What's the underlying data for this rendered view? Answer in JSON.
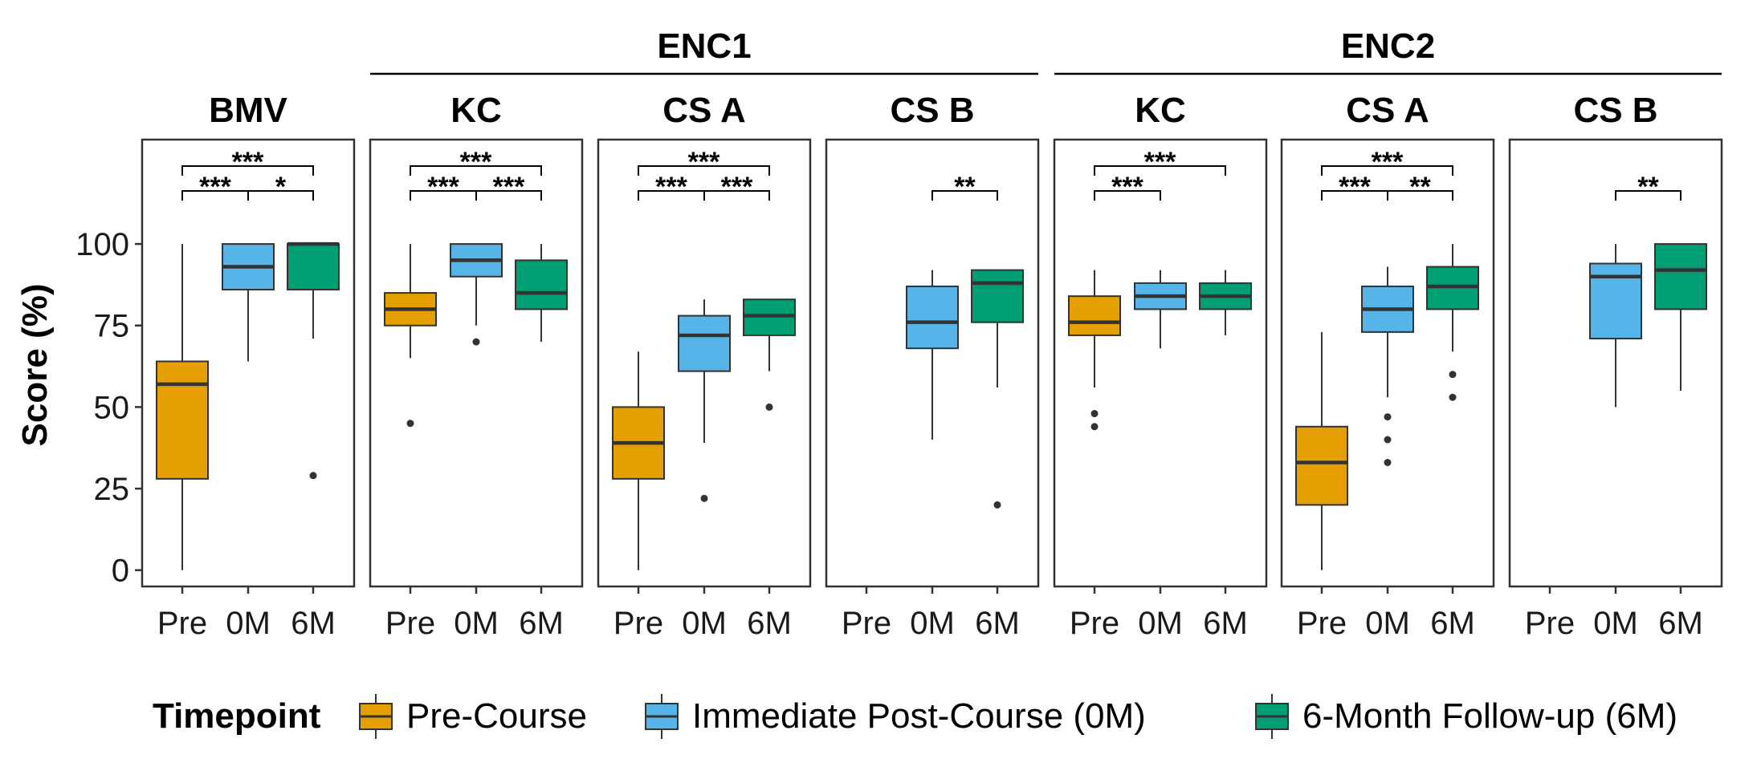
{
  "chart_data": {
    "type": "box",
    "ylabel": "Score (%)",
    "ylim": [
      -5,
      132
    ],
    "yticks": [
      0,
      25,
      50,
      75,
      100
    ],
    "x_categories": [
      "Pre",
      "0M",
      "6M"
    ],
    "groups": [
      {
        "label": "",
        "panels": [
          0
        ]
      },
      {
        "label": "ENC1",
        "panels": [
          1,
          2,
          3
        ]
      },
      {
        "label": "ENC2",
        "panels": [
          4,
          5,
          6
        ]
      }
    ],
    "legend": {
      "title": "Timepoint",
      "position": "bottom",
      "entries": [
        {
          "key": "Pre",
          "label": "Pre-Course",
          "color": "#E69F00"
        },
        {
          "key": "0M",
          "label": "Immediate Post-Course (0M)",
          "color": "#56B4E9"
        },
        {
          "key": "6M",
          "label": "6-Month Follow-up (6M)",
          "color": "#009E73"
        }
      ]
    },
    "panels": [
      {
        "title": "BMV",
        "boxes": [
          {
            "x": "Pre",
            "q1": 28,
            "median": 57,
            "q3": 64,
            "whisker_low": 0,
            "whisker_high": 100,
            "outliers": []
          },
          {
            "x": "0M",
            "q1": 86,
            "median": 93,
            "q3": 100,
            "whisker_low": 64,
            "whisker_high": 100,
            "outliers": []
          },
          {
            "x": "6M",
            "q1": 86,
            "median": 100,
            "q3": 100,
            "whisker_low": 71,
            "whisker_high": 100,
            "outliers": [
              29
            ]
          }
        ],
        "comparisons": [
          {
            "from": "Pre",
            "to": "6M",
            "label": "***",
            "level": 2
          },
          {
            "from": "Pre",
            "to": "0M",
            "label": "***",
            "level": 1
          },
          {
            "from": "0M",
            "to": "6M",
            "label": "*",
            "level": 1
          }
        ]
      },
      {
        "title": "KC",
        "boxes": [
          {
            "x": "Pre",
            "q1": 75,
            "median": 80,
            "q3": 85,
            "whisker_low": 65,
            "whisker_high": 100,
            "outliers": [
              45
            ]
          },
          {
            "x": "0M",
            "q1": 90,
            "median": 95,
            "q3": 100,
            "whisker_low": 75,
            "whisker_high": 100,
            "outliers": [
              70
            ]
          },
          {
            "x": "6M",
            "q1": 80,
            "median": 85,
            "q3": 95,
            "whisker_low": 70,
            "whisker_high": 100,
            "outliers": []
          }
        ],
        "comparisons": [
          {
            "from": "Pre",
            "to": "6M",
            "label": "***",
            "level": 2
          },
          {
            "from": "Pre",
            "to": "0M",
            "label": "***",
            "level": 1
          },
          {
            "from": "0M",
            "to": "6M",
            "label": "***",
            "level": 1
          }
        ]
      },
      {
        "title": "CS A",
        "boxes": [
          {
            "x": "Pre",
            "q1": 28,
            "median": 39,
            "q3": 50,
            "whisker_low": 0,
            "whisker_high": 67,
            "outliers": []
          },
          {
            "x": "0M",
            "q1": 61,
            "median": 72,
            "q3": 78,
            "whisker_low": 39,
            "whisker_high": 83,
            "outliers": [
              22
            ]
          },
          {
            "x": "6M",
            "q1": 72,
            "median": 78,
            "q3": 83,
            "whisker_low": 61,
            "whisker_high": 83,
            "outliers": [
              50
            ]
          }
        ],
        "comparisons": [
          {
            "from": "Pre",
            "to": "6M",
            "label": "***",
            "level": 2
          },
          {
            "from": "Pre",
            "to": "0M",
            "label": "***",
            "level": 1
          },
          {
            "from": "0M",
            "to": "6M",
            "label": "***",
            "level": 1
          }
        ]
      },
      {
        "title": "CS B",
        "boxes": [
          {
            "x": "0M",
            "q1": 68,
            "median": 76,
            "q3": 87,
            "whisker_low": 40,
            "whisker_high": 92,
            "outliers": []
          },
          {
            "x": "6M",
            "q1": 76,
            "median": 88,
            "q3": 92,
            "whisker_low": 56,
            "whisker_high": 92,
            "outliers": [
              20
            ]
          }
        ],
        "comparisons": [
          {
            "from": "0M",
            "to": "6M",
            "label": "**",
            "level": 1
          }
        ]
      },
      {
        "title": "KC",
        "boxes": [
          {
            "x": "Pre",
            "q1": 72,
            "median": 76,
            "q3": 84,
            "whisker_low": 56,
            "whisker_high": 92,
            "outliers": [
              48,
              44
            ]
          },
          {
            "x": "0M",
            "q1": 80,
            "median": 84,
            "q3": 88,
            "whisker_low": 68,
            "whisker_high": 92,
            "outliers": []
          },
          {
            "x": "6M",
            "q1": 80,
            "median": 84,
            "q3": 88,
            "whisker_low": 72,
            "whisker_high": 92,
            "outliers": []
          }
        ],
        "comparisons": [
          {
            "from": "Pre",
            "to": "6M",
            "label": "***",
            "level": 2
          },
          {
            "from": "Pre",
            "to": "0M",
            "label": "***",
            "level": 1
          }
        ]
      },
      {
        "title": "CS A",
        "boxes": [
          {
            "x": "Pre",
            "q1": 20,
            "median": 33,
            "q3": 44,
            "whisker_low": 0,
            "whisker_high": 73,
            "outliers": []
          },
          {
            "x": "0M",
            "q1": 73,
            "median": 80,
            "q3": 87,
            "whisker_low": 53,
            "whisker_high": 93,
            "outliers": [
              47,
              40,
              33
            ]
          },
          {
            "x": "6M",
            "q1": 80,
            "median": 87,
            "q3": 93,
            "whisker_low": 67,
            "whisker_high": 100,
            "outliers": [
              60,
              53
            ]
          }
        ],
        "comparisons": [
          {
            "from": "Pre",
            "to": "6M",
            "label": "***",
            "level": 2
          },
          {
            "from": "Pre",
            "to": "0M",
            "label": "***",
            "level": 1
          },
          {
            "from": "0M",
            "to": "6M",
            "label": "**",
            "level": 1
          }
        ]
      },
      {
        "title": "CS B",
        "boxes": [
          {
            "x": "0M",
            "q1": 71,
            "median": 90,
            "q3": 94,
            "whisker_low": 50,
            "whisker_high": 100,
            "outliers": []
          },
          {
            "x": "6M",
            "q1": 80,
            "median": 92,
            "q3": 100,
            "whisker_low": 55,
            "whisker_high": 100,
            "outliers": []
          }
        ],
        "comparisons": [
          {
            "from": "0M",
            "to": "6M",
            "label": "**",
            "level": 1
          }
        ]
      }
    ]
  }
}
